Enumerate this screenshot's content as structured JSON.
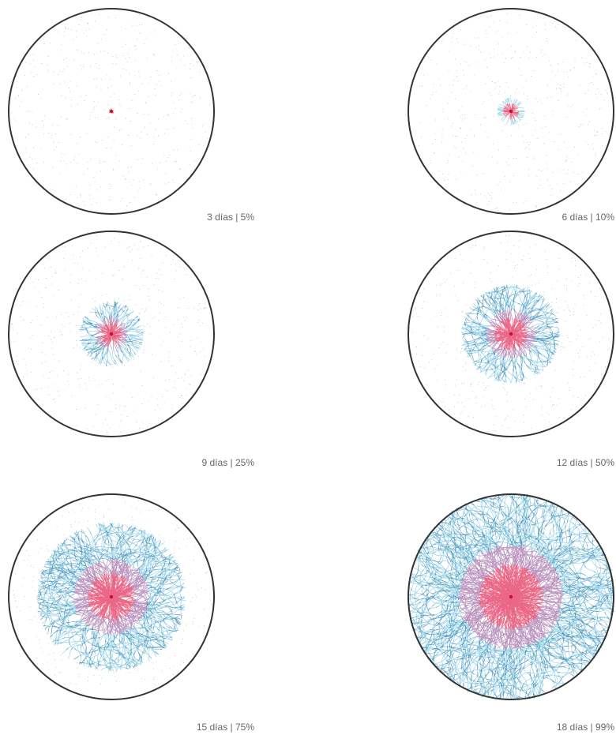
{
  "panels": [
    {
      "label": "3 días | 5%"
    },
    {
      "label": "6 días | 10%"
    },
    {
      "label": "9 días | 25%"
    },
    {
      "label": "12 días | 50%"
    },
    {
      "label": "15 días | 75%"
    },
    {
      "label": "18 días | 99%"
    }
  ]
}
